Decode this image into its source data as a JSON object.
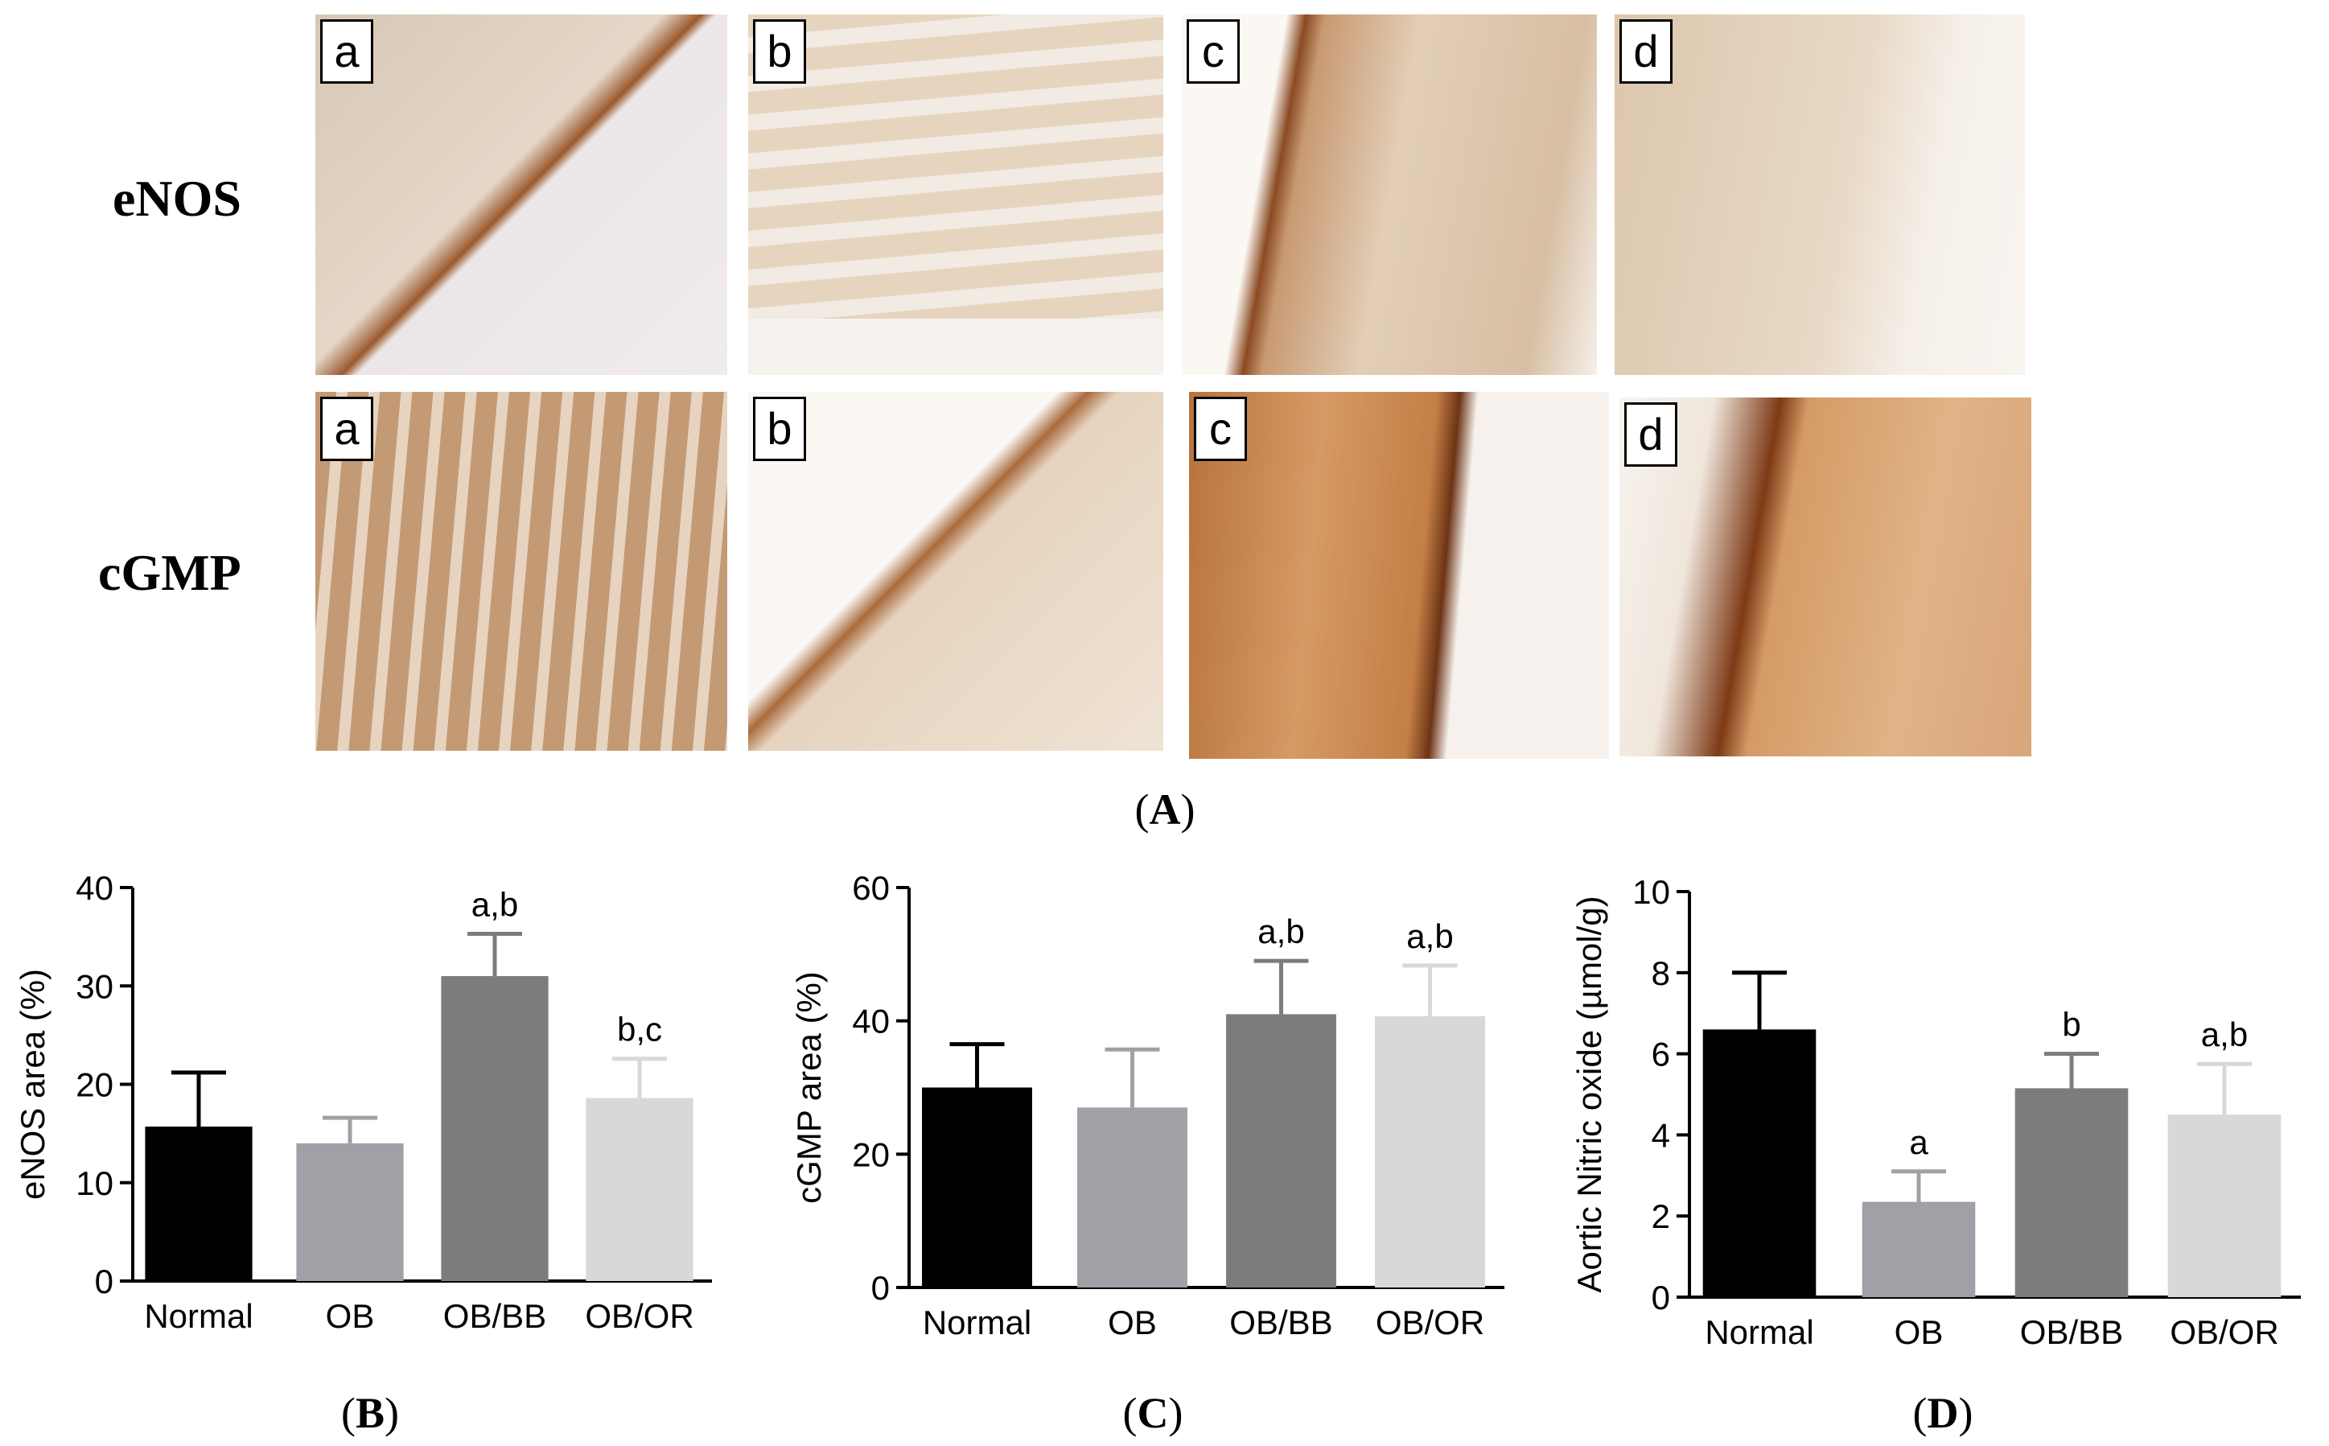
{
  "figure": {
    "row_labels": [
      "eNOS",
      "cGMP"
    ],
    "panel_tags": [
      "a",
      "b",
      "c",
      "d"
    ],
    "captions": {
      "A": "A",
      "B": "B",
      "C": "C",
      "D": "D"
    }
  },
  "colors": {
    "Normal": "#000000",
    "OB": "#a0a0a6",
    "OB/BB": "#7c7c7c",
    "OB/OR": "#d8d8d8"
  },
  "chart_data": [
    {
      "type": "bar",
      "panel": "B",
      "categories": [
        "Normal",
        "OB",
        "OB/BB",
        "OB/OR"
      ],
      "values": [
        15.7,
        14.0,
        31.0,
        18.6
      ],
      "errors": [
        5.5,
        2.6,
        4.3,
        4.0
      ],
      "annotations": [
        "",
        "",
        "a,b",
        "b,c"
      ],
      "ylabel": "eNOS area (%)",
      "ylim": [
        0,
        40
      ],
      "yticks": [
        0,
        10,
        20,
        30,
        40
      ]
    },
    {
      "type": "bar",
      "panel": "C",
      "categories": [
        "Normal",
        "OB",
        "OB/BB",
        "OB/OR"
      ],
      "values": [
        30.0,
        27.0,
        41.0,
        40.7
      ],
      "errors": [
        6.5,
        8.7,
        8.0,
        7.6
      ],
      "annotations": [
        "",
        "",
        "a,b",
        "a,b"
      ],
      "ylabel": "cGMP area (%)",
      "ylim": [
        0,
        60
      ],
      "yticks": [
        0,
        20,
        40,
        60
      ]
    },
    {
      "type": "bar",
      "panel": "D",
      "categories": [
        "Normal",
        "OB",
        "OB/BB",
        "OB/OR"
      ],
      "values": [
        6.6,
        2.35,
        5.15,
        4.5
      ],
      "errors": [
        1.4,
        0.75,
        0.85,
        1.25
      ],
      "annotations": [
        "",
        "a",
        "b",
        "a,b"
      ],
      "ylabel": "Aortic Nitric oxide (µmol/g)",
      "ylim": [
        0,
        10
      ],
      "yticks": [
        0,
        2,
        4,
        6,
        8,
        10
      ]
    }
  ]
}
